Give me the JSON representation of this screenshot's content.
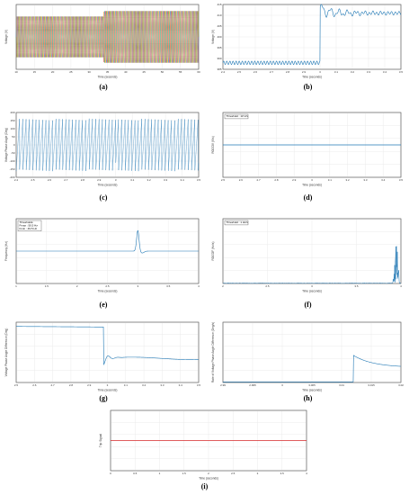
{
  "chart_data": [
    {
      "id": "a",
      "type": "line",
      "caption": "(a)",
      "xlabel": "Time (seconds)",
      "ylabel": "Voltage (V)",
      "xticks": [
        "10",
        "15",
        "20",
        "25",
        "30",
        "35",
        "40",
        "45",
        "50",
        "55",
        "60"
      ],
      "xlim": [
        10,
        60
      ],
      "ylim": [
        -600,
        600
      ],
      "series": [
        {
          "color": "#1f77b4"
        },
        {
          "color": "#ff7f0e"
        },
        {
          "color": "#2ca02c"
        },
        {
          "color": "#d62728"
        }
      ],
      "segments": [
        {
          "x_start": 10,
          "x_end": 34,
          "amplitude": 380
        },
        {
          "x_start": 34,
          "x_end": 60,
          "amplitude": 480
        }
      ],
      "cycles": 50
    },
    {
      "id": "b",
      "type": "line",
      "caption": "(b)",
      "xlabel": "Time (seconds)",
      "ylabel": "Voltage (V)",
      "xticks": [
        "2.4",
        "2.5",
        "2.6",
        "2.7",
        "2.8",
        "2.9",
        "3",
        "3.1",
        "3.2",
        "3.3",
        "3.4",
        "3.5"
      ],
      "yticks": [
        "385",
        "390",
        "395",
        "400",
        "405",
        "410",
        "415"
      ],
      "xlim": [
        2.4,
        3.5
      ],
      "ylim": [
        385,
        415
      ],
      "step_x": 3.0,
      "before": 388,
      "after": 411
    },
    {
      "id": "c",
      "type": "line",
      "caption": "(c)",
      "xlabel": "Time (seconds)",
      "ylabel": "Voltage Phase Angle (Deg)",
      "xticks": [
        "2.4",
        "2.5",
        "2.6",
        "2.7",
        "2.8",
        "2.9",
        "3",
        "3.1",
        "3.2",
        "3.3",
        "3.4",
        "3.5"
      ],
      "yticks": [
        "-200",
        "-150",
        "-100",
        "-50",
        "0",
        "50",
        "100",
        "150",
        "200"
      ],
      "xlim": [
        2.4,
        3.5
      ],
      "ylim": [
        -200,
        200
      ],
      "cycles": 55,
      "step_x": 3.0
    },
    {
      "id": "d",
      "type": "line",
      "caption": "(d)",
      "xlabel": "Time (seconds)",
      "ylabel": "ROCOV (V/s)",
      "legend": "Threshold : 10 V/s",
      "xticks": [
        "2.5",
        "2.6",
        "2.7",
        "2.8",
        "2.9",
        "3",
        "3.1",
        "3.2",
        "3.3",
        "3.4",
        "3.5"
      ],
      "xlim": [
        2.5,
        3.5
      ],
      "ylim": [
        -1,
        1
      ],
      "level": 0
    },
    {
      "id": "e",
      "type": "line",
      "caption": "(e)",
      "xlabel": "Time (seconds)",
      "ylabel": "Frequency (Hz)",
      "legend": [
        "Thresholds:",
        "Fmax : 50.5 Hz",
        "Fmin : 49.5 Hz"
      ],
      "xticks": [
        "1",
        "1.5",
        "2",
        "2.5",
        "3",
        "3.5",
        "4"
      ],
      "xlim": [
        1,
        4
      ],
      "ylim": [
        49.5,
        50.5
      ],
      "base": 50,
      "spike_x": 3.0,
      "spike_peak": 50.32
    },
    {
      "id": "f",
      "type": "line",
      "caption": "(f)",
      "xlabel": "Time (seconds)",
      "ylabel": "ROCOF (Hz/s)",
      "legend": "Threshold : 1 Hz/s",
      "xticks": [
        "2",
        "2.5",
        "3",
        "3.5",
        "4"
      ],
      "xlim": [
        2,
        4
      ],
      "ylim": [
        0,
        1
      ],
      "burst_x": 3.95,
      "burst_peak": 0.65
    },
    {
      "id": "g",
      "type": "line",
      "caption": "(g)",
      "xlabel": "Time (seconds)",
      "ylabel": "Voltage Phase Angle Difference (Deg)",
      "xticks": [
        "2.5",
        "2.6",
        "2.7",
        "2.8",
        "2.9",
        "3",
        "3.1",
        "3.2",
        "3.3",
        "3.4",
        "3.5"
      ],
      "xlim": [
        2.5,
        3.5
      ],
      "ylim": [
        0,
        1
      ],
      "step_x": 2.98,
      "before": 0.93,
      "after": 0.4
    },
    {
      "id": "h",
      "type": "line",
      "caption": "(h)",
      "xlabel": "Time (seconds)",
      "ylabel": "Rate of Voltage Phase Angle Difference (Deg/s)",
      "xticks": [
        "2.99",
        "2.995",
        "3",
        "3.005",
        "3.01",
        "3.015",
        "3.02"
      ],
      "xlim": [
        2.99,
        3.02
      ],
      "ylim": [
        0,
        1
      ],
      "jump_x": 3.012,
      "jump_peak": 0.45,
      "settle": 0.25
    },
    {
      "id": "i",
      "type": "line",
      "caption": "(i)",
      "xlabel": "Time (seconds)",
      "ylabel": "Trip Signal",
      "xticks": [
        "0",
        "0.5",
        "1",
        "1.5",
        "2",
        "2.5",
        "3",
        "3.5",
        "4"
      ],
      "xlim": [
        0,
        4
      ],
      "ylim": [
        -1,
        1
      ],
      "level": 0,
      "color": "#d62728"
    }
  ],
  "colors": {
    "main_line": "#1f77b4",
    "grid": "#e6e6e6",
    "axes": "#555555",
    "trip": "#d62728"
  }
}
